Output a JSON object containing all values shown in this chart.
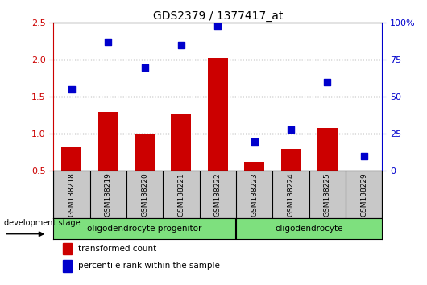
{
  "title": "GDS2379 / 1377417_at",
  "samples": [
    "GSM138218",
    "GSM138219",
    "GSM138220",
    "GSM138221",
    "GSM138222",
    "GSM138223",
    "GSM138224",
    "GSM138225",
    "GSM138229"
  ],
  "transformed_count": [
    0.83,
    1.3,
    1.0,
    1.27,
    2.03,
    0.62,
    0.8,
    1.08,
    0.5
  ],
  "percentile_rank": [
    55,
    87,
    70,
    85,
    98,
    20,
    28,
    60,
    10
  ],
  "ylim_left": [
    0.5,
    2.5
  ],
  "ylim_right": [
    0,
    100
  ],
  "yticks_left": [
    0.5,
    1.0,
    1.5,
    2.0,
    2.5
  ],
  "yticks_right": [
    0,
    25,
    50,
    75,
    100
  ],
  "groups": [
    {
      "label": "oligodendrocyte progenitor",
      "start": 0,
      "end": 5,
      "color": "#7EE07E"
    },
    {
      "label": "oligodendrocyte",
      "start": 5,
      "end": 9,
      "color": "#7EE07E"
    }
  ],
  "bar_color": "#CC0000",
  "scatter_color": "#0000CC",
  "label_area_color": "#C8C8C8",
  "legend_bar_label": "transformed count",
  "legend_scatter_label": "percentile rank within the sample",
  "dev_stage_label": "development stage",
  "left_axis_color": "#CC0000",
  "right_axis_color": "#0000CC",
  "bar_width": 0.55,
  "n_progenitor": 5,
  "n_total": 9
}
